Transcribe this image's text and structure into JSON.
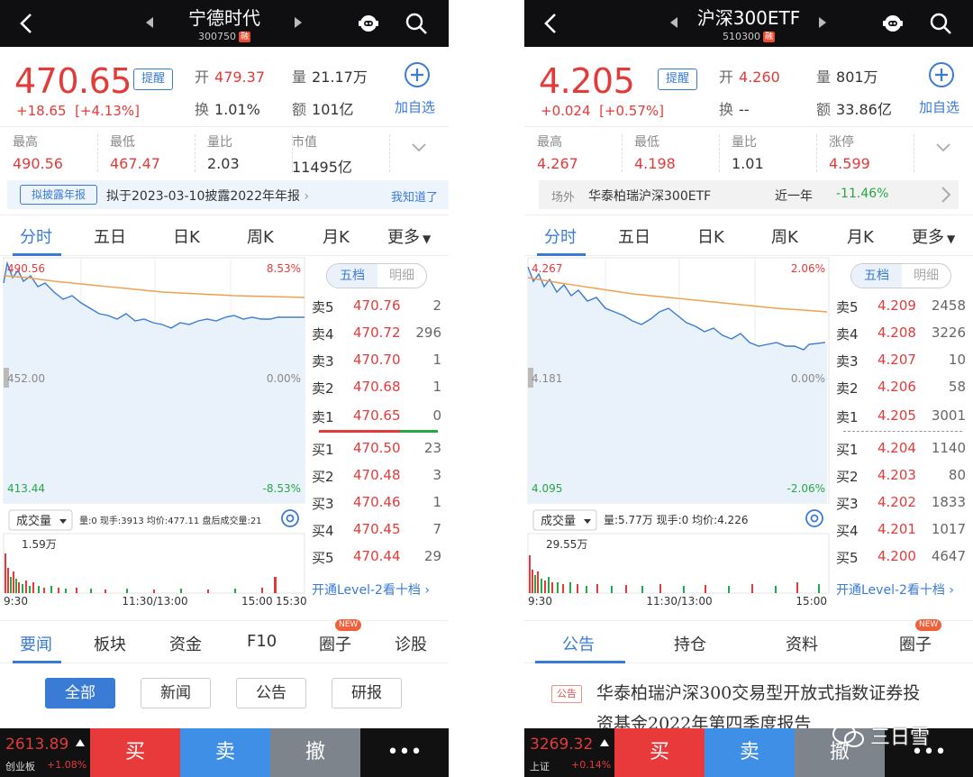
{
  "left": {
    "title": "宁德时代",
    "code": "300750",
    "rong": "融",
    "price": "470.65",
    "remind": "提醒",
    "change": "+18.65",
    "change_pct": "[+4.13%]",
    "open_label": "开",
    "open": "479.37",
    "volume_label": "量",
    "volume": "21.17万",
    "turnover_label": "换",
    "turnover": "1.01%",
    "amount_label": "额",
    "amount": "101亿",
    "add_fav": "加自选",
    "stats": [
      {
        "k": "最高",
        "v": "490.56",
        "color": "#e33a3a"
      },
      {
        "k": "最低",
        "v": "467.47",
        "color": "#e33a3a"
      },
      {
        "k": "量比",
        "v": "2.03",
        "color": "#333333"
      },
      {
        "k": "市值",
        "v": "11495亿",
        "color": "#333333"
      }
    ],
    "notice": {
      "tag": "拟披露年报",
      "text": "拟于2023-03-10披露2022年年报",
      "link": "我知道了"
    },
    "ktabs": [
      "分时",
      "五日",
      "日K",
      "周K",
      "月K",
      "更多"
    ],
    "chart": {
      "high": "490.56",
      "high_pct": "8.53%",
      "mid": "452.00",
      "mid_pct": "0.00%",
      "low": "413.44",
      "low_pct": "-8.53%",
      "vol_dropdown": "成交量",
      "vol_info": "量:0  现手:3913  均价:477.11  盘后成交量:21",
      "vol_max": "1.59万",
      "times": [
        "9:30",
        "11:30/13:00",
        "15:00",
        "15:30"
      ]
    },
    "book_tabs": [
      "五档",
      "明细"
    ],
    "asks": [
      {
        "label": "卖5",
        "price": "470.76",
        "qty": "2"
      },
      {
        "label": "卖4",
        "price": "470.72",
        "qty": "296"
      },
      {
        "label": "卖3",
        "price": "470.70",
        "qty": "1"
      },
      {
        "label": "卖2",
        "price": "470.68",
        "qty": "1"
      },
      {
        "label": "卖1",
        "price": "470.65",
        "qty": "0"
      }
    ],
    "bids": [
      {
        "label": "买1",
        "price": "470.50",
        "qty": "23"
      },
      {
        "label": "买2",
        "price": "470.48",
        "qty": "3"
      },
      {
        "label": "买3",
        "price": "470.46",
        "qty": "1"
      },
      {
        "label": "买4",
        "price": "470.45",
        "qty": "7"
      },
      {
        "label": "买5",
        "price": "470.44",
        "qty": "29"
      }
    ],
    "level2": "开通Level-2看十档",
    "subtabs": [
      "要闻",
      "板块",
      "资金",
      "F10",
      "圈子",
      "诊股"
    ],
    "new_badge": "NEW",
    "filters": [
      "全部",
      "新闻",
      "公告",
      "研报"
    ],
    "index": {
      "value": "2613.89",
      "name": "创业板",
      "change": "+1.08%"
    },
    "actions": [
      "买",
      "卖",
      "撤",
      "•••"
    ]
  },
  "right": {
    "title": "沪深300ETF",
    "code": "510300",
    "rong": "融",
    "price": "4.205",
    "remind": "提醒",
    "change": "+0.024",
    "change_pct": "[+0.57%]",
    "open_label": "开",
    "open": "4.260",
    "volume_label": "量",
    "volume": "801万",
    "turnover_label": "换",
    "turnover": "--",
    "amount_label": "额",
    "amount": "33.86亿",
    "add_fav": "加自选",
    "stats": [
      {
        "k": "最高",
        "v": "4.267",
        "color": "#e33a3a"
      },
      {
        "k": "最低",
        "v": "4.198",
        "color": "#e33a3a"
      },
      {
        "k": "量比",
        "v": "1.01",
        "color": "#333333"
      },
      {
        "k": "涨停",
        "v": "4.599",
        "color": "#e33a3a"
      }
    ],
    "notice": {
      "t1": "场外",
      "t2": "华泰柏瑞沪深300ETF",
      "t3": "近一年",
      "t4": "-11.46%"
    },
    "ktabs": [
      "分时",
      "五日",
      "日K",
      "周K",
      "月K",
      "更多"
    ],
    "chart": {
      "high": "4.267",
      "high_pct": "2.06%",
      "mid": "4.181",
      "mid_pct": "0.00%",
      "low": "4.095",
      "low_pct": "-2.06%",
      "vol_dropdown": "成交量",
      "vol_info": "量:5.77万  现手:0  均价:4.226",
      "vol_max": "29.55万",
      "times": [
        "9:30",
        "11:30/13:00",
        "15:00"
      ]
    },
    "book_tabs": [
      "五档",
      "明细"
    ],
    "asks": [
      {
        "label": "卖5",
        "price": "4.209",
        "qty": "2458"
      },
      {
        "label": "卖4",
        "price": "4.208",
        "qty": "3226"
      },
      {
        "label": "卖3",
        "price": "4.207",
        "qty": "10"
      },
      {
        "label": "卖2",
        "price": "4.206",
        "qty": "58"
      },
      {
        "label": "卖1",
        "price": "4.205",
        "qty": "3001"
      }
    ],
    "bids": [
      {
        "label": "买1",
        "price": "4.204",
        "qty": "1140"
      },
      {
        "label": "买2",
        "price": "4.203",
        "qty": "80"
      },
      {
        "label": "买3",
        "price": "4.202",
        "qty": "1833"
      },
      {
        "label": "买4",
        "price": "4.201",
        "qty": "1017"
      },
      {
        "label": "买5",
        "price": "4.200",
        "qty": "4647"
      }
    ],
    "level2": "开通Level-2看十档",
    "subtabs": [
      "公告",
      "持仓",
      "资料",
      "圈子"
    ],
    "new_badge": "NEW",
    "announcement": {
      "tag": "公告",
      "line1": "华泰柏瑞沪深300交易型开放式指数证券投",
      "line2": "资基金2022年第四季度报告"
    },
    "index": {
      "value": "3269.32",
      "name": "上证",
      "change": "+0.14%"
    },
    "actions": [
      "买",
      "卖",
      "撤",
      "•••"
    ]
  },
  "watermark": "三日雪",
  "colors": {
    "up": "#e33a3a",
    "down": "#27a844",
    "accent": "#3a7bd5",
    "avg_line": "#f0a050",
    "price_line": "#3a7bd5"
  }
}
